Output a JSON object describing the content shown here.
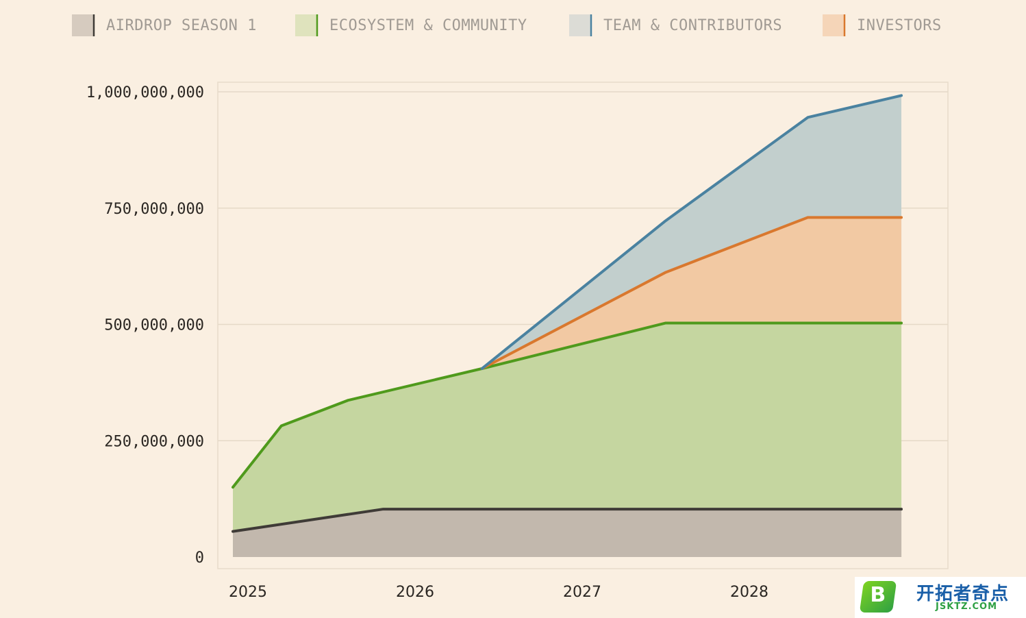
{
  "chart_data": {
    "type": "area",
    "stacked": true,
    "title": "",
    "xlabel": "",
    "ylabel": "",
    "x_ticks": [
      "2025",
      "2026",
      "2027",
      "2028"
    ],
    "x_range": [
      2024.92,
      2029.2
    ],
    "y_ticks": [
      "0",
      "250,000,000",
      "500,000,000",
      "750,000,000",
      "1,000,000,000"
    ],
    "ylim": [
      0,
      1000000000
    ],
    "grid": true,
    "legend_position": "top",
    "series": [
      {
        "name": "AIRDROP SEASON 1",
        "color": "#3f3b37",
        "fill": "#c2b8ad",
        "legend_swatch": "#d6cbbf",
        "points": [
          {
            "x": 2024.91,
            "y": 55000000
          },
          {
            "x": 2025.81,
            "y": 103000000
          },
          {
            "x": 2028.91,
            "y": 103000000
          }
        ]
      },
      {
        "name": "ECOSYSTEM & COMMUNITY",
        "color": "#4f9a1c",
        "fill": "#c5d6a0",
        "legend_swatch": "#dfe3bd",
        "points": [
          {
            "x": 2024.91,
            "y": 150000000
          },
          {
            "x": 2025.2,
            "y": 282000000
          },
          {
            "x": 2025.6,
            "y": 337000000
          },
          {
            "x": 2026.4,
            "y": 405000000
          },
          {
            "x": 2027.5,
            "y": 503000000
          },
          {
            "x": 2028.91,
            "y": 503000000
          }
        ]
      },
      {
        "name": "INVESTORS",
        "color": "#d9782e",
        "fill": "#f2c9a3",
        "legend_swatch": "#f5d5b8",
        "points": [
          {
            "x": 2026.4,
            "y": 405000000
          },
          {
            "x": 2027.5,
            "y": 612000000
          },
          {
            "x": 2028.35,
            "y": 730000000
          },
          {
            "x": 2028.91,
            "y": 730000000
          }
        ]
      },
      {
        "name": "TEAM & CONTRIBUTORS",
        "color": "#4a82a0",
        "fill": "#c2cfcd",
        "legend_swatch": "#dcdcd6",
        "points": [
          {
            "x": 2026.4,
            "y": 405000000
          },
          {
            "x": 2027.5,
            "y": 723000000
          },
          {
            "x": 2028.35,
            "y": 945000000
          },
          {
            "x": 2028.91,
            "y": 992000000
          }
        ]
      }
    ],
    "legend_order": [
      "AIRDROP SEASON 1",
      "ECOSYSTEM & COMMUNITY",
      "TEAM & CONTRIBUTORS",
      "INVESTORS"
    ]
  },
  "watermark": {
    "logo_letter": "B",
    "title": "开拓者奇点",
    "subtitle": "JSKTZ.COM"
  }
}
